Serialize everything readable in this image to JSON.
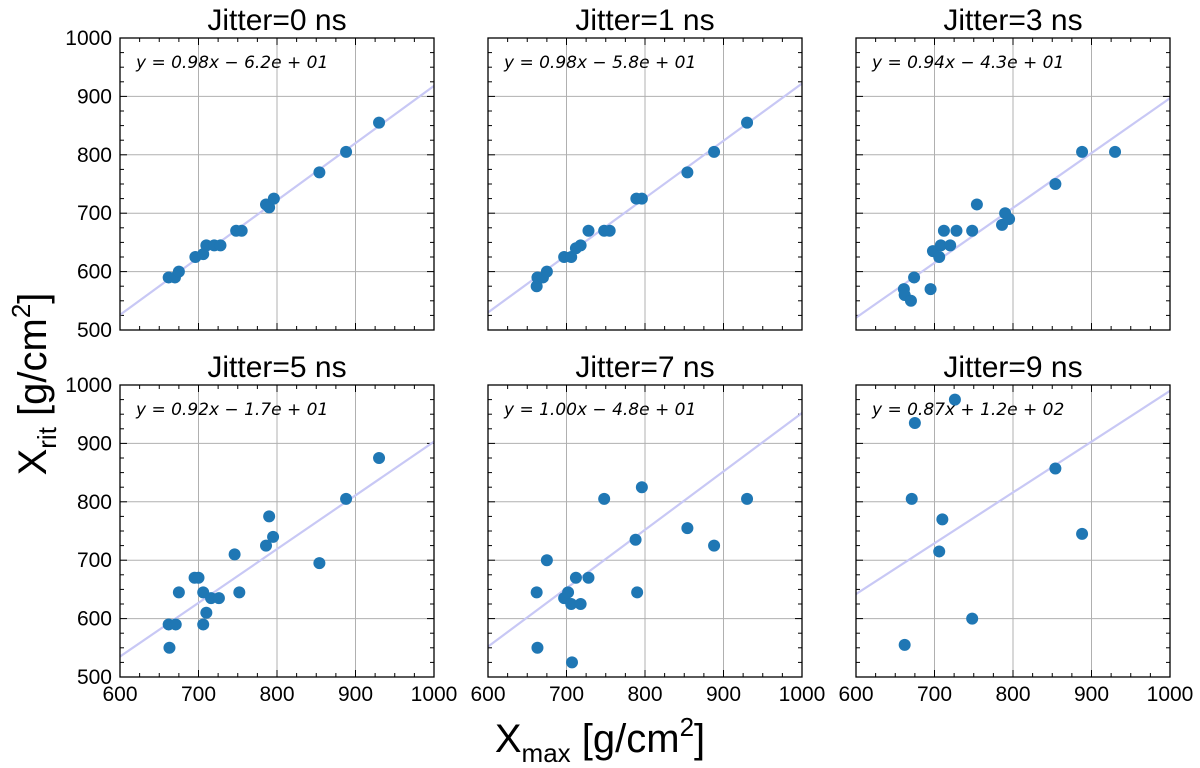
{
  "figure": {
    "xlabel_main": "X",
    "xlabel_sub": "max",
    "xlabel_unit_pre": " [g/cm",
    "xlabel_unit_sup": "2",
    "xlabel_unit_post": "]",
    "ylabel_main": "X",
    "ylabel_sub": "rit",
    "ylabel_unit_pre": " [g/cm",
    "ylabel_unit_sup": "2",
    "ylabel_unit_post": "]",
    "point_color": "#1f77b4",
    "fit_color": "#c8c8f5",
    "grid_color": "#b0b0b0"
  },
  "chart_data": [
    {
      "type": "scatter",
      "title": "Jitter=0 ns",
      "equation": "y = 0.98x − 6.2e + 01",
      "fit": {
        "slope": 0.98,
        "intercept": -62
      },
      "xlim": [
        600,
        1000
      ],
      "ylim": [
        500,
        1000
      ],
      "xticks": [
        600,
        700,
        800,
        900,
        1000
      ],
      "yticks": [
        500,
        600,
        700,
        800,
        900,
        1000
      ],
      "grid": true,
      "points": [
        [
          662,
          590
        ],
        [
          670,
          590
        ],
        [
          675,
          600
        ],
        [
          696,
          625
        ],
        [
          706,
          630
        ],
        [
          710,
          645
        ],
        [
          720,
          645
        ],
        [
          728,
          645
        ],
        [
          748,
          670
        ],
        [
          755,
          670
        ],
        [
          786,
          715
        ],
        [
          790,
          710
        ],
        [
          796,
          725
        ],
        [
          854,
          770
        ],
        [
          888,
          805
        ],
        [
          930,
          855
        ]
      ]
    },
    {
      "type": "scatter",
      "title": "Jitter=1 ns",
      "equation": "y = 0.98x − 5.8e + 01",
      "fit": {
        "slope": 0.98,
        "intercept": -58
      },
      "xlim": [
        600,
        1000
      ],
      "ylim": [
        500,
        1000
      ],
      "xticks": [
        600,
        700,
        800,
        900,
        1000
      ],
      "yticks": [
        500,
        600,
        700,
        800,
        900,
        1000
      ],
      "grid": true,
      "points": [
        [
          662,
          575
        ],
        [
          663,
          590
        ],
        [
          670,
          590
        ],
        [
          675,
          600
        ],
        [
          697,
          625
        ],
        [
          706,
          625
        ],
        [
          712,
          640
        ],
        [
          718,
          645
        ],
        [
          728,
          670
        ],
        [
          748,
          670
        ],
        [
          755,
          670
        ],
        [
          789,
          725
        ],
        [
          796,
          725
        ],
        [
          854,
          770
        ],
        [
          888,
          805
        ],
        [
          930,
          855
        ]
      ]
    },
    {
      "type": "scatter",
      "title": "Jitter=3 ns",
      "equation": "y = 0.94x − 4.3e + 01",
      "fit": {
        "slope": 0.94,
        "intercept": -43
      },
      "xlim": [
        600,
        1000
      ],
      "ylim": [
        500,
        1000
      ],
      "xticks": [
        600,
        700,
        800,
        900,
        1000
      ],
      "yticks": [
        500,
        600,
        700,
        800,
        900,
        1000
      ],
      "grid": true,
      "points": [
        [
          661,
          570
        ],
        [
          662,
          560
        ],
        [
          670,
          550
        ],
        [
          674,
          590
        ],
        [
          695,
          570
        ],
        [
          698,
          635
        ],
        [
          706,
          625
        ],
        [
          708,
          645
        ],
        [
          712,
          670
        ],
        [
          720,
          645
        ],
        [
          728,
          670
        ],
        [
          748,
          670
        ],
        [
          754,
          715
        ],
        [
          786,
          680
        ],
        [
          790,
          700
        ],
        [
          795,
          690
        ],
        [
          854,
          750
        ],
        [
          888,
          805
        ],
        [
          930,
          805
        ]
      ]
    },
    {
      "type": "scatter",
      "title": "Jitter=5 ns",
      "equation": "y = 0.92x − 1.7e + 01",
      "fit": {
        "slope": 0.92,
        "intercept": -17
      },
      "xlim": [
        600,
        1000
      ],
      "ylim": [
        500,
        1000
      ],
      "xticks": [
        600,
        700,
        800,
        900,
        1000
      ],
      "yticks": [
        500,
        600,
        700,
        800,
        900,
        1000
      ],
      "grid": true,
      "points": [
        [
          662,
          590
        ],
        [
          663,
          550
        ],
        [
          671,
          590
        ],
        [
          675,
          645
        ],
        [
          695,
          670
        ],
        [
          700,
          670
        ],
        [
          706,
          590
        ],
        [
          706,
          645
        ],
        [
          710,
          610
        ],
        [
          716,
          635
        ],
        [
          726,
          635
        ],
        [
          746,
          710
        ],
        [
          752,
          645
        ],
        [
          786,
          725
        ],
        [
          790,
          775
        ],
        [
          795,
          740
        ],
        [
          854,
          695
        ],
        [
          888,
          805
        ],
        [
          930,
          875
        ]
      ]
    },
    {
      "type": "scatter",
      "title": "Jitter=7 ns",
      "equation": "y = 1.00x − 4.8e + 01",
      "fit": {
        "slope": 1.0,
        "intercept": -48
      },
      "xlim": [
        600,
        1000
      ],
      "ylim": [
        500,
        1000
      ],
      "xticks": [
        600,
        700,
        800,
        900,
        1000
      ],
      "yticks": [
        500,
        600,
        700,
        800,
        900,
        1000
      ],
      "grid": true,
      "points": [
        [
          662,
          645
        ],
        [
          663,
          550
        ],
        [
          675,
          700
        ],
        [
          697,
          635
        ],
        [
          702,
          645
        ],
        [
          706,
          625
        ],
        [
          707,
          525
        ],
        [
          712,
          670
        ],
        [
          718,
          625
        ],
        [
          728,
          670
        ],
        [
          748,
          805
        ],
        [
          788,
          735
        ],
        [
          790,
          645
        ],
        [
          796,
          825
        ],
        [
          854,
          755
        ],
        [
          888,
          725
        ],
        [
          930,
          805
        ]
      ]
    },
    {
      "type": "scatter",
      "title": "Jitter=9 ns",
      "equation": "y = 0.87x + 1.2e + 02",
      "fit": {
        "slope": 0.87,
        "intercept": 120
      },
      "xlim": [
        600,
        1000
      ],
      "ylim": [
        500,
        1000
      ],
      "xticks": [
        600,
        700,
        800,
        900,
        1000
      ],
      "yticks": [
        500,
        600,
        700,
        800,
        900,
        1000
      ],
      "grid": true,
      "points": [
        [
          662,
          555
        ],
        [
          671,
          805
        ],
        [
          675,
          935
        ],
        [
          706,
          715
        ],
        [
          710,
          770
        ],
        [
          726,
          975
        ],
        [
          748,
          600
        ],
        [
          854,
          857
        ],
        [
          888,
          745
        ]
      ]
    }
  ]
}
